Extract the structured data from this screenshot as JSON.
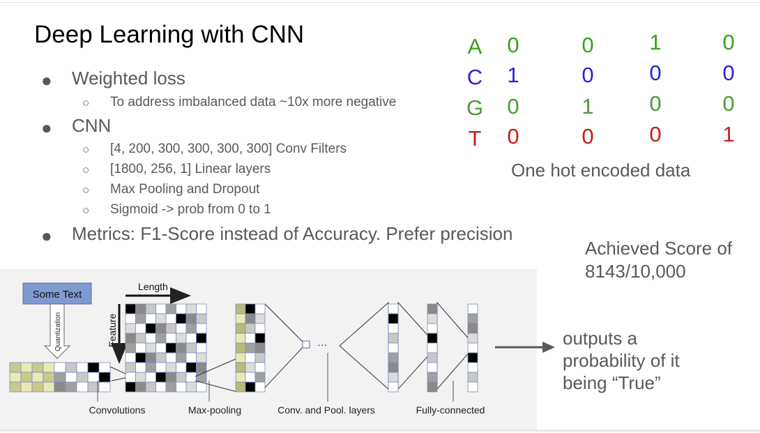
{
  "slide": {
    "title": "Deep Learning with CNN",
    "bullets": {
      "b1": "Weighted loss",
      "b1_sub1": "To address imbalanced data ~10x more negative",
      "b2": "CNN",
      "b2_sub1": "[4, 200, 300, 300, 300, 300] Conv Filters",
      "b2_sub2": "[1800, 256, 1] Linear layers",
      "b2_sub3": "Max Pooling and Dropout",
      "b2_sub4": "Sigmoid -> prob from 0 to 1",
      "b3": "Metrics: F1-Score instead of Accuracy. Prefer precision"
    },
    "bullet_symbols": {
      "filled": "●",
      "hollow": "○"
    }
  },
  "one_hot": {
    "caption": "One hot encoded data",
    "rows": [
      {
        "letter": "A",
        "values": [
          "0",
          "0",
          "1",
          "0"
        ],
        "color": "#38a11a"
      },
      {
        "letter": "C",
        "values": [
          "1",
          "0",
          "0",
          "0"
        ],
        "color": "#2b21d6"
      },
      {
        "letter": "G",
        "values": [
          "0",
          "1",
          "0",
          "0"
        ],
        "color": "#4f9a35"
      },
      {
        "letter": "T",
        "values": [
          "0",
          "0",
          "0",
          "1"
        ],
        "color": "#c81c1c"
      }
    ]
  },
  "score": {
    "line1": "Achieved Score of",
    "line2": "8143/10,000"
  },
  "output_text": {
    "line1": "outputs a",
    "line2": "probability of it",
    "line3": "being “True”"
  },
  "diagram": {
    "some_text": "Some Text",
    "quantization": "Quantization",
    "length": "Length",
    "feature": "Feature",
    "ellipsis": "···",
    "labels": {
      "convolutions": "Convolutions",
      "max_pooling": "Max-pooling",
      "conv_pool_layers": "Conv. and Pool. layers",
      "fully_connected": "Fully-connected"
    }
  }
}
